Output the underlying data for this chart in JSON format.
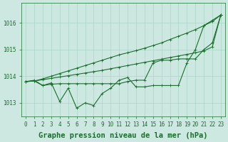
{
  "background_color": "#cce8e0",
  "grid_color": "#aad4c8",
  "line_color": "#1a6e2e",
  "title": "Graphe pression niveau de la mer (hPa)",
  "xlim": [
    -0.5,
    23.5
  ],
  "ylim": [
    1012.5,
    1016.75
  ],
  "yticks": [
    1013,
    1014,
    1015,
    1016
  ],
  "xticks": [
    0,
    1,
    2,
    3,
    4,
    5,
    6,
    7,
    8,
    9,
    10,
    11,
    12,
    13,
    14,
    15,
    16,
    17,
    18,
    19,
    20,
    21,
    22,
    23
  ],
  "line1": [
    1013.8,
    1013.85,
    1013.65,
    1013.75,
    1013.05,
    1013.55,
    1012.8,
    1013.0,
    1012.9,
    1013.35,
    1013.55,
    1013.85,
    1013.95,
    1013.6,
    1013.6,
    1013.65,
    1013.65,
    1013.65,
    1013.65,
    1014.5,
    1015.0,
    1015.9,
    1016.05,
    1016.3
  ],
  "line2_diag_top": [
    1013.8,
    1013.82,
    1013.9,
    1014.0,
    1014.1,
    1014.2,
    1014.3,
    1014.4,
    1014.5,
    1014.6,
    1014.7,
    1014.8,
    1014.88,
    1014.96,
    1015.05,
    1015.15,
    1015.25,
    1015.38,
    1015.5,
    1015.62,
    1015.75,
    1015.9,
    1016.1,
    1016.3
  ],
  "line3_diag_mid": [
    1013.8,
    1013.82,
    1013.87,
    1013.92,
    1013.97,
    1014.02,
    1014.07,
    1014.12,
    1014.17,
    1014.22,
    1014.28,
    1014.34,
    1014.4,
    1014.46,
    1014.52,
    1014.58,
    1014.64,
    1014.7,
    1014.76,
    1014.82,
    1014.88,
    1014.95,
    1015.1,
    1016.3
  ],
  "line4_jagged": [
    1013.8,
    1013.82,
    1013.65,
    1013.7,
    1013.72,
    1013.72,
    1013.72,
    1013.72,
    1013.72,
    1013.72,
    1013.72,
    1013.72,
    1013.8,
    1013.85,
    1013.85,
    1014.5,
    1014.6,
    1014.6,
    1014.65,
    1014.65,
    1014.65,
    1015.0,
    1015.25,
    1016.3
  ],
  "title_fontsize": 7.5,
  "tick_fontsize": 5.5,
  "linewidth": 0.8,
  "markersize": 2.2
}
